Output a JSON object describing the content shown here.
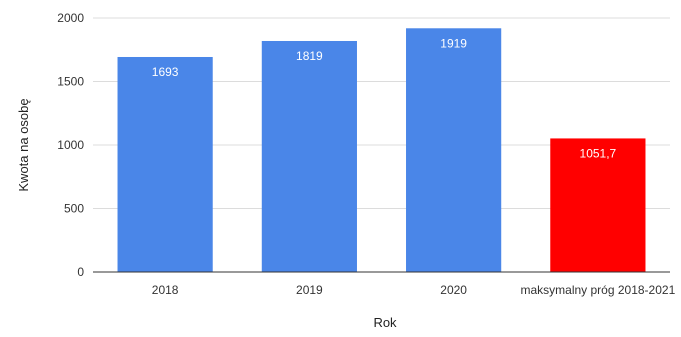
{
  "chart_data": {
    "type": "bar",
    "categories": [
      "2018",
      "2019",
      "2020",
      "maksymalny próg 2018-2021"
    ],
    "values": [
      1693,
      1819,
      1919,
      1051.7
    ],
    "data_labels": [
      "1693",
      "1819",
      "1919",
      "1051,7"
    ],
    "bar_colors": [
      "#4a86e8",
      "#4a86e8",
      "#4a86e8",
      "#ff0000"
    ],
    "xlabel": "Rok",
    "ylabel": "Kwota na osobę",
    "ylim": [
      0,
      2000
    ],
    "yticks": [
      0,
      500,
      1000,
      1500,
      2000
    ],
    "ytick_labels": [
      "0",
      "500",
      "1000",
      "1500",
      "2000"
    ],
    "grid": true,
    "legend": "none"
  }
}
